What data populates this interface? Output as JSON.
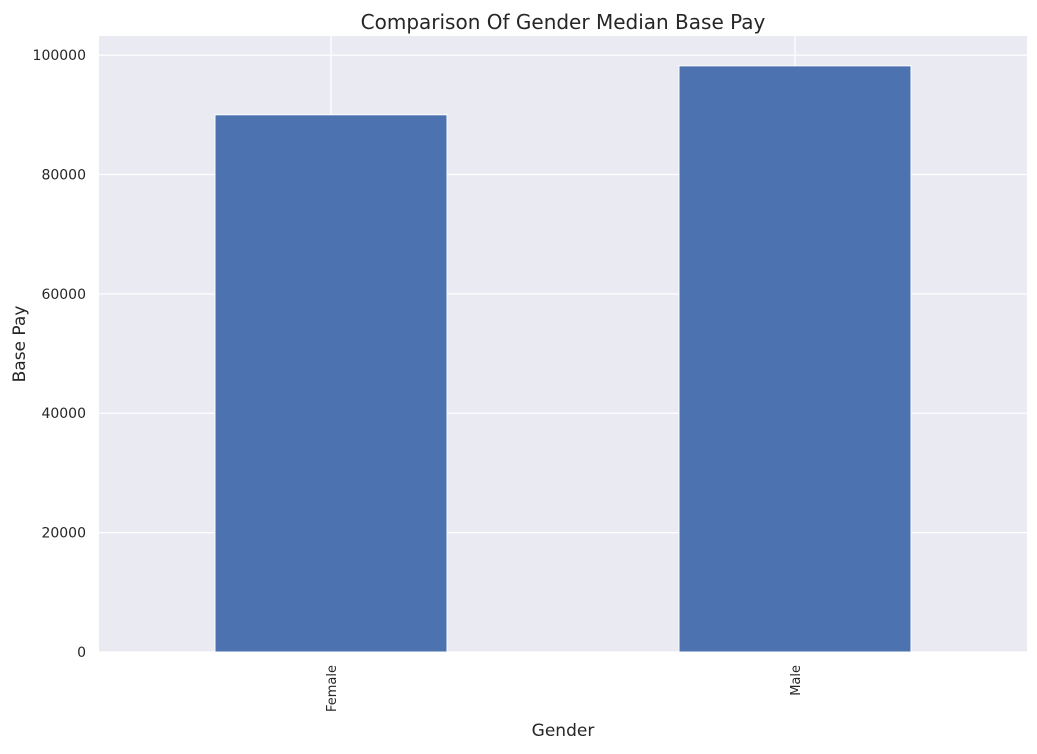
{
  "chart_data": {
    "type": "bar",
    "title": "Comparison Of Gender Median Base Pay",
    "xlabel": "Gender",
    "ylabel": "Base Pay",
    "categories": [
      "Female",
      "Male"
    ],
    "values": [
      90000,
      98200
    ],
    "ylim": [
      0,
      103200
    ],
    "yticks": [
      0,
      20000,
      40000,
      60000,
      80000,
      100000
    ],
    "ytick_labels": [
      "0",
      "20000",
      "40000",
      "60000",
      "80000",
      "100000"
    ],
    "grid": true,
    "legend": "none",
    "colors": {
      "bar": "#4c72b0",
      "background": "#eaeaf2",
      "grid": "#ffffff",
      "text": "#262626"
    }
  }
}
